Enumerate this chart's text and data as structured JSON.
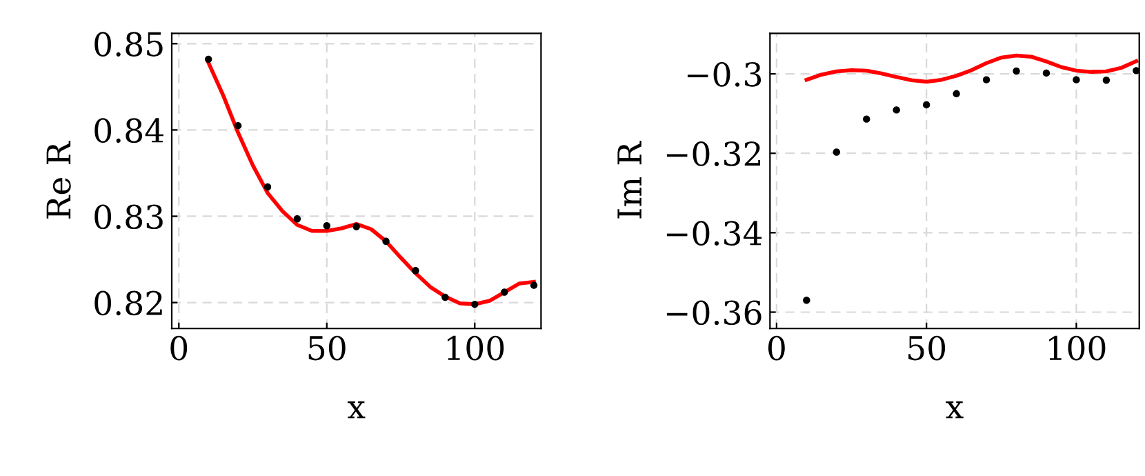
{
  "chart_data": [
    {
      "type": "scatter",
      "xlabel": "x",
      "ylabel": "Re R",
      "xlim": [
        -2.4,
        122.4
      ],
      "ylim": [
        0.817,
        0.8512
      ],
      "xticks": [
        0,
        50,
        100
      ],
      "yticks": [
        0.82,
        0.83,
        0.84,
        0.85
      ],
      "grid": true,
      "legend": false,
      "series": [
        {
          "color": "#000000",
          "marker": "circle",
          "x": [
            10,
            20,
            30,
            40,
            50,
            60,
            70,
            80,
            90,
            100,
            110,
            120
          ],
          "values": [
            0.8482,
            0.8405,
            0.8334,
            0.8297,
            0.8289,
            0.8288,
            0.8271,
            0.8237,
            0.8206,
            0.8198,
            0.8212,
            0.822
          ]
        },
        {
          "type": "line",
          "color": "#ff0000",
          "line_style": "solid",
          "x": [
            10,
            15,
            20,
            25,
            30,
            35,
            40,
            45,
            50,
            55,
            60,
            65,
            70,
            75,
            80,
            85,
            90,
            95,
            100,
            105,
            110,
            115,
            120
          ],
          "values": [
            0.8478,
            0.844,
            0.8397,
            0.8359,
            0.8327,
            0.8306,
            0.829,
            0.8283,
            0.8283,
            0.8286,
            0.8291,
            0.8285,
            0.8271,
            0.8252,
            0.8234,
            0.8218,
            0.8207,
            0.8199,
            0.8198,
            0.8202,
            0.8212,
            0.8222,
            0.8224
          ]
        }
      ]
    },
    {
      "type": "scatter",
      "xlabel": "x",
      "ylabel": "Im R",
      "xlim": [
        -2.2,
        121
      ],
      "ylim": [
        -0.3641,
        -0.2898
      ],
      "xticks": [
        0,
        50,
        100
      ],
      "yticks": [
        {
          "value": -0.3,
          "label": "−0.3"
        },
        {
          "value": -0.32,
          "label": "−0.32"
        },
        {
          "value": -0.34,
          "label": "−0.34"
        },
        {
          "value": -0.36,
          "label": "−0.36"
        }
      ],
      "grid": true,
      "legend": false,
      "series": [
        {
          "color": "#000000",
          "marker": "circle",
          "x": [
            10,
            20,
            30,
            40,
            50,
            60,
            70,
            80,
            90,
            100,
            110,
            120
          ],
          "values": [
            -0.357,
            -0.3197,
            -0.3114,
            -0.3091,
            -0.3078,
            -0.305,
            -0.3015,
            -0.2993,
            -0.2998,
            -0.3015,
            -0.3016,
            -0.2992
          ]
        },
        {
          "type": "line",
          "color": "#ff0000",
          "line_style": "solid",
          "x": [
            10,
            15,
            20,
            25,
            30,
            35,
            40,
            45,
            50,
            55,
            60,
            65,
            70,
            75,
            80,
            85,
            90,
            95,
            100,
            105,
            110,
            115,
            120
          ],
          "values": [
            -0.3015,
            -0.3002,
            -0.2994,
            -0.2991,
            -0.2992,
            -0.2999,
            -0.3008,
            -0.3016,
            -0.302,
            -0.3015,
            -0.3005,
            -0.2991,
            -0.2973,
            -0.2959,
            -0.2954,
            -0.2957,
            -0.2969,
            -0.2983,
            -0.2992,
            -0.2995,
            -0.2994,
            -0.2985,
            -0.2968
          ]
        }
      ]
    }
  ]
}
